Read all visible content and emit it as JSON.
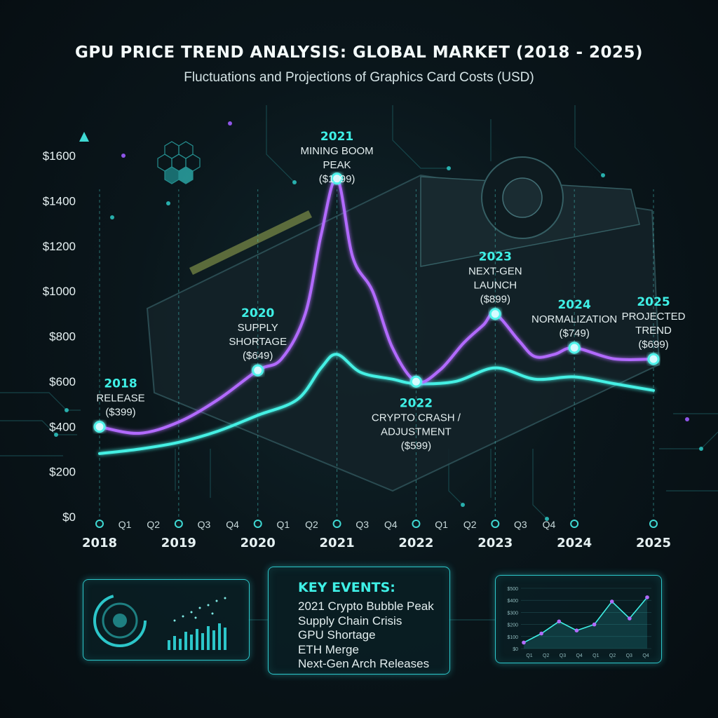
{
  "title": "GPU PRICE TREND ANALYSIS: GLOBAL MARKET (2018 - 2025)",
  "subtitle": "Fluctuations and Projections of Graphics Card Costs (USD)",
  "colors": {
    "primary_line": "#b26bff",
    "secondary_line": "#44f0e4",
    "accent": "#3ff0e6",
    "axis": "#3fd9d3"
  },
  "chart_data": {
    "type": "line",
    "title": "GPU PRICE TREND ANALYSIS: GLOBAL MARKET (2018 - 2025)",
    "ylabel": "",
    "xlabel": "",
    "ylim": [
      0,
      1700
    ],
    "y_ticks": [
      "$0",
      "$200",
      "$400",
      "$600",
      "$800",
      "$1000",
      "$1200",
      "$1400",
      "$1600"
    ],
    "y_tick_values": [
      0,
      200,
      400,
      600,
      800,
      1000,
      1200,
      1400,
      1600
    ],
    "x_major_labels": [
      "2018",
      "2019",
      "2020",
      "2021",
      "2022",
      "2023",
      "2024",
      "2025"
    ],
    "x_minor_labels": [
      "Q1",
      "Q2",
      "Q3",
      "Q4",
      "Q1",
      "Q2",
      "Q3",
      "Q4",
      "Q1",
      "Q2",
      "Q3",
      "Q4"
    ],
    "series": [
      {
        "x": [
          2018.0,
          2018.5,
          2019.0,
          2019.5,
          2020.0,
          2020.3,
          2020.6,
          2020.8,
          2021.0,
          2021.2,
          2021.45,
          2021.7,
          2022.0,
          2022.3,
          2022.6,
          2022.85,
          2023.0,
          2023.3,
          2023.5,
          2023.75,
          2024.0,
          2024.5,
          2025.0
        ],
        "values": [
          399,
          370,
          420,
          520,
          649,
          700,
          900,
          1250,
          1499,
          1150,
          1000,
          750,
          599,
          650,
          770,
          850,
          899,
          780,
          710,
          720,
          749,
          700,
          699
        ]
      },
      {
        "x": [
          2018.0,
          2018.5,
          2019.0,
          2019.5,
          2020.0,
          2020.5,
          2020.8,
          2021.0,
          2021.3,
          2021.7,
          2022.0,
          2022.5,
          2023.0,
          2023.5,
          2024.0,
          2024.5,
          2025.0
        ],
        "values": [
          280,
          300,
          330,
          380,
          450,
          520,
          660,
          720,
          640,
          610,
          590,
          600,
          660,
          610,
          620,
          590,
          560
        ]
      }
    ],
    "annotations": [
      {
        "year": "2018",
        "lines": [
          "RELEASE",
          "($399)"
        ],
        "x": 2018.0,
        "y": 399
      },
      {
        "year": "2020",
        "lines": [
          "SUPPLY",
          "SHORTAGE",
          "($649)"
        ],
        "x": 2020.0,
        "y": 649
      },
      {
        "year": "2021",
        "lines": [
          "MINING BOOM",
          "PEAK",
          "($1499)"
        ],
        "x": 2021.0,
        "y": 1499
      },
      {
        "year": "2022",
        "lines": [
          "CRYPTO CRASH /",
          "ADJUSTMENT",
          "($599)"
        ],
        "x": 2022.0,
        "y": 599
      },
      {
        "year": "2023",
        "lines": [
          "NEXT-GEN",
          "LAUNCH",
          "($899)"
        ],
        "x": 2023.0,
        "y": 899
      },
      {
        "year": "2024",
        "lines": [
          "NORMALIZATION",
          "($749)"
        ],
        "x": 2024.0,
        "y": 749
      },
      {
        "year": "2025",
        "lines": [
          "PROJECTED",
          "TREND",
          "($699)"
        ],
        "x": 2025.0,
        "y": 699
      }
    ],
    "grid": false
  },
  "key_events": {
    "title": "KEY EVENTS:",
    "items": [
      "2021 Crypto Bubble Peak",
      "Supply Chain Crisis",
      "GPU Shortage",
      "ETH Merge",
      "Next-Gen Arch Releases"
    ]
  },
  "mini_chart": {
    "y_ticks": [
      "$500",
      "$400",
      "$300",
      "$200",
      "$100",
      "$0"
    ],
    "x_ticks": [
      "Q1",
      "Q2",
      "Q3",
      "Q4",
      "Q1",
      "Q2",
      "Q3",
      "Q4"
    ],
    "values": [
      0.1,
      0.25,
      0.45,
      0.3,
      0.4,
      0.78,
      0.5,
      0.85
    ]
  }
}
